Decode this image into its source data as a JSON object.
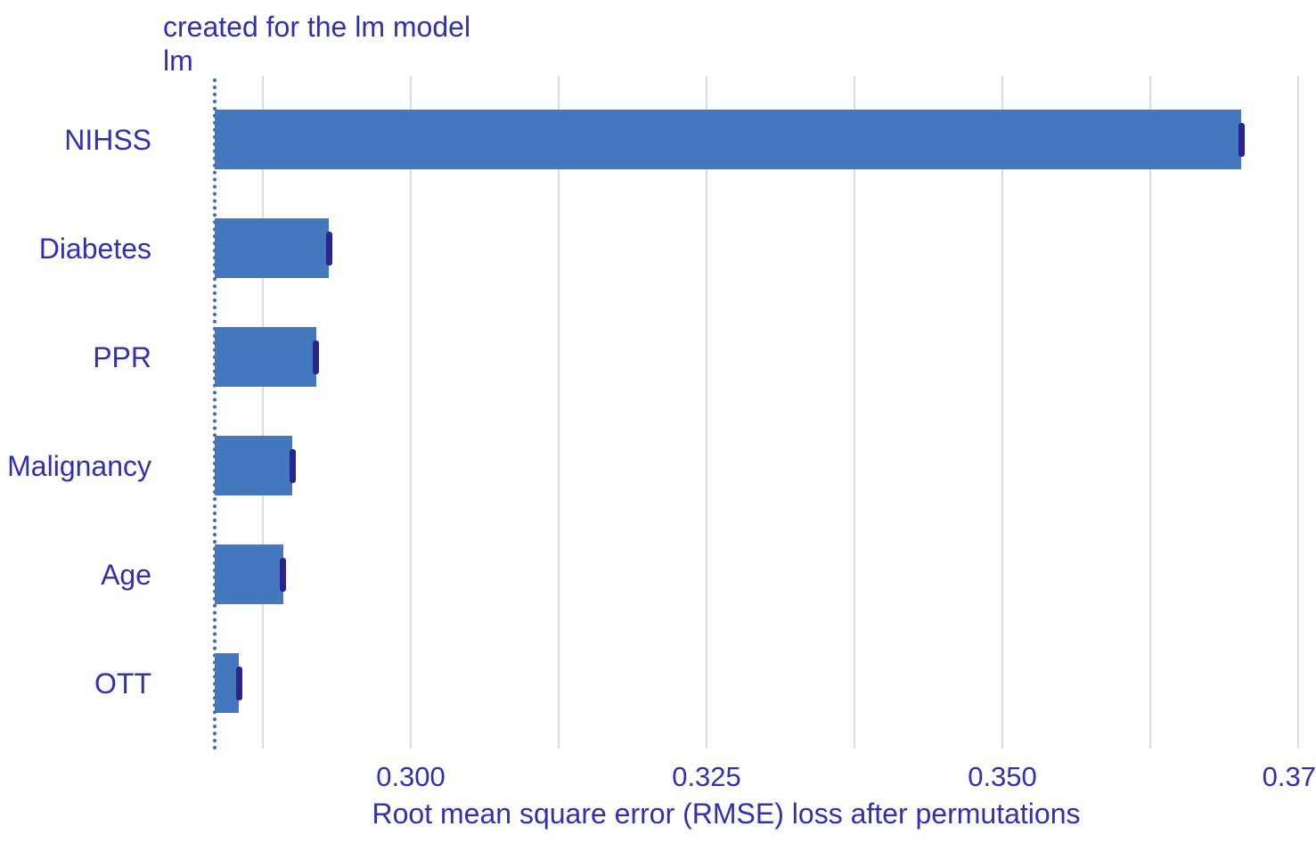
{
  "title": "created for the lm model",
  "facet_label": "lm",
  "x_axis_title": "Root mean square error (RMSE) loss after permutations",
  "colors": {
    "bar": "#4378bf",
    "whisker": "#2b2390",
    "text": "#3130b2",
    "gridline": "#dcdcdc",
    "baseline_line": "#3f6cb8",
    "background": "#ffffff"
  },
  "chart_data": {
    "type": "bar",
    "orientation": "horizontal",
    "title": "created for the lm model",
    "facet": "lm",
    "xlabel": "Root mean square error (RMSE) loss after permutations",
    "categories": [
      "NIHSS",
      "Diabetes",
      "PPR",
      "Malignancy",
      "Age",
      "OTT"
    ],
    "values": [
      0.3702,
      0.2931,
      0.292,
      0.29,
      0.2892,
      0.2855
    ],
    "bar_start_value": 0.2834,
    "baseline_value": 0.2834,
    "whisker_values": [
      0.3702,
      0.2931,
      0.292,
      0.29,
      0.2892,
      0.2855
    ],
    "xlim": [
      0.2826,
      0.3766
    ],
    "x_ticks": [
      {
        "value": 0.2875,
        "label": ""
      },
      {
        "value": 0.3,
        "label": "0.300"
      },
      {
        "value": 0.3125,
        "label": ""
      },
      {
        "value": 0.325,
        "label": "0.325"
      },
      {
        "value": 0.3375,
        "label": ""
      },
      {
        "value": 0.35,
        "label": "0.350"
      },
      {
        "value": 0.3625,
        "label": ""
      },
      {
        "value": 0.375,
        "label": "0.37"
      }
    ],
    "grid": true,
    "legend": false
  }
}
